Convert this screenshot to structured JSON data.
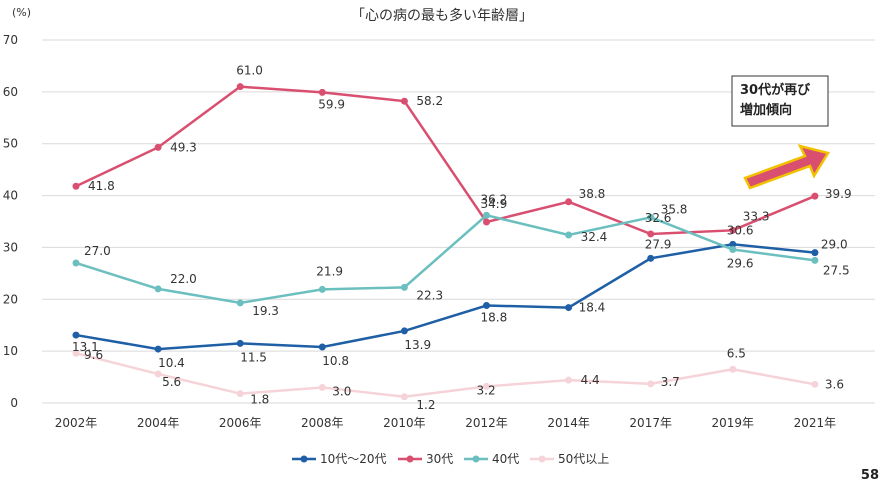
{
  "chart_data": {
    "type": "line",
    "title": "「心の病の最も多い年齢層」",
    "ylabel": "(%)",
    "ylim": [
      0,
      70
    ],
    "yticks": [
      0,
      10,
      20,
      30,
      40,
      50,
      60,
      70
    ],
    "grid": true,
    "legend_position": "bottom",
    "categories": [
      "2002年",
      "2004年",
      "2006年",
      "2008年",
      "2010年",
      "2012年",
      "2014年",
      "2017年",
      "2019年",
      "2021年"
    ],
    "series": [
      {
        "name": "10代〜20代",
        "color": "#1f5fa6",
        "values": [
          13.1,
          10.4,
          11.5,
          10.8,
          13.9,
          18.8,
          18.4,
          27.9,
          30.6,
          29.0
        ],
        "labels": [
          "13.1",
          "10.4",
          "11.5",
          "10.8",
          "13.9",
          "18.8",
          "18.4",
          "27.9",
          "30.6",
          "29.0"
        ]
      },
      {
        "name": "30代",
        "color": "#d94f70",
        "values": [
          41.8,
          49.3,
          61.0,
          59.9,
          58.2,
          34.9,
          38.8,
          32.6,
          33.3,
          39.9
        ],
        "labels": [
          "41.8",
          "49.3",
          "61.0",
          "59.9",
          "58.2",
          "34.9",
          "38.8",
          "32.6",
          "33.3",
          "39.9"
        ]
      },
      {
        "name": "40代",
        "color": "#6cbfbf",
        "values": [
          27.0,
          22.0,
          19.3,
          21.9,
          22.3,
          36.2,
          32.4,
          35.8,
          29.6,
          27.5
        ],
        "labels": [
          "27.0",
          "22.0",
          "19.3",
          "21.9",
          "22.3",
          "36.2",
          "32.4",
          "35.8",
          "29.6",
          "27.5"
        ]
      },
      {
        "name": "50代以上",
        "color": "#f5d3d8",
        "values": [
          9.6,
          5.6,
          1.8,
          3.0,
          1.2,
          3.2,
          4.4,
          3.7,
          6.5,
          3.6
        ],
        "labels": [
          "9.6",
          "5.6",
          "1.8",
          "3.0",
          "1.2",
          "3.2",
          "4.4",
          "3.7",
          "6.5",
          "3.6"
        ]
      }
    ],
    "annotation": {
      "text_lines": [
        "30代が再び",
        "増加傾向"
      ]
    }
  },
  "page_number": "58"
}
